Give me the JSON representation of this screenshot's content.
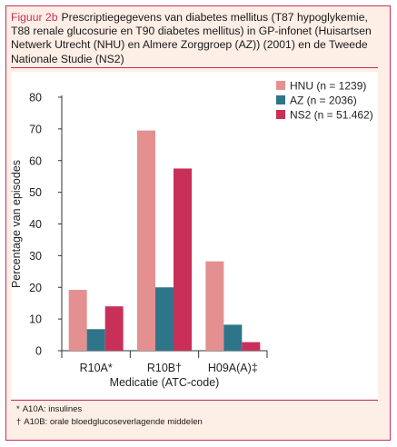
{
  "caption": {
    "label": "Figuur 2b",
    "text": "Prescriptiegegevens van diabetes mellitus (T87 hypoglykemie, T88 renale glucosurie en T90 diabetes mellitus) in GP-infonet (Huisartsen Netwerk Utrecht (NHU) en Almere Zorggroep (AZ)) (2001) en de Tweede Nationale Studie (NS2)"
  },
  "chart_data": {
    "type": "bar",
    "categories": [
      "R10A*",
      "R10B†",
      "H09A(A)‡"
    ],
    "series": [
      {
        "name": "HNU (n = 1239)",
        "values": [
          19.2,
          69.5,
          28.2
        ],
        "color": "#e49091"
      },
      {
        "name": "AZ (n = 2036)",
        "values": [
          6.8,
          20.0,
          8.2
        ],
        "color": "#2f7589"
      },
      {
        "name": "NS2 (n = 51.462)",
        "values": [
          14.0,
          57.5,
          2.7
        ],
        "color": "#c8305a"
      }
    ],
    "xlabel": "Medicatie (ATC-code)",
    "ylabel": "Percentage van episodes",
    "ylim": [
      0,
      80
    ],
    "yticks": [
      0,
      10,
      20,
      30,
      40,
      50,
      60,
      70,
      80
    ],
    "grid": false,
    "legend_position": "top-right"
  },
  "footnotes": [
    {
      "symbol": "*",
      "text": "A10A: insulines"
    },
    {
      "symbol": "†",
      "text": "A10B: orale bloedglucoseverlagende middelen"
    }
  ]
}
